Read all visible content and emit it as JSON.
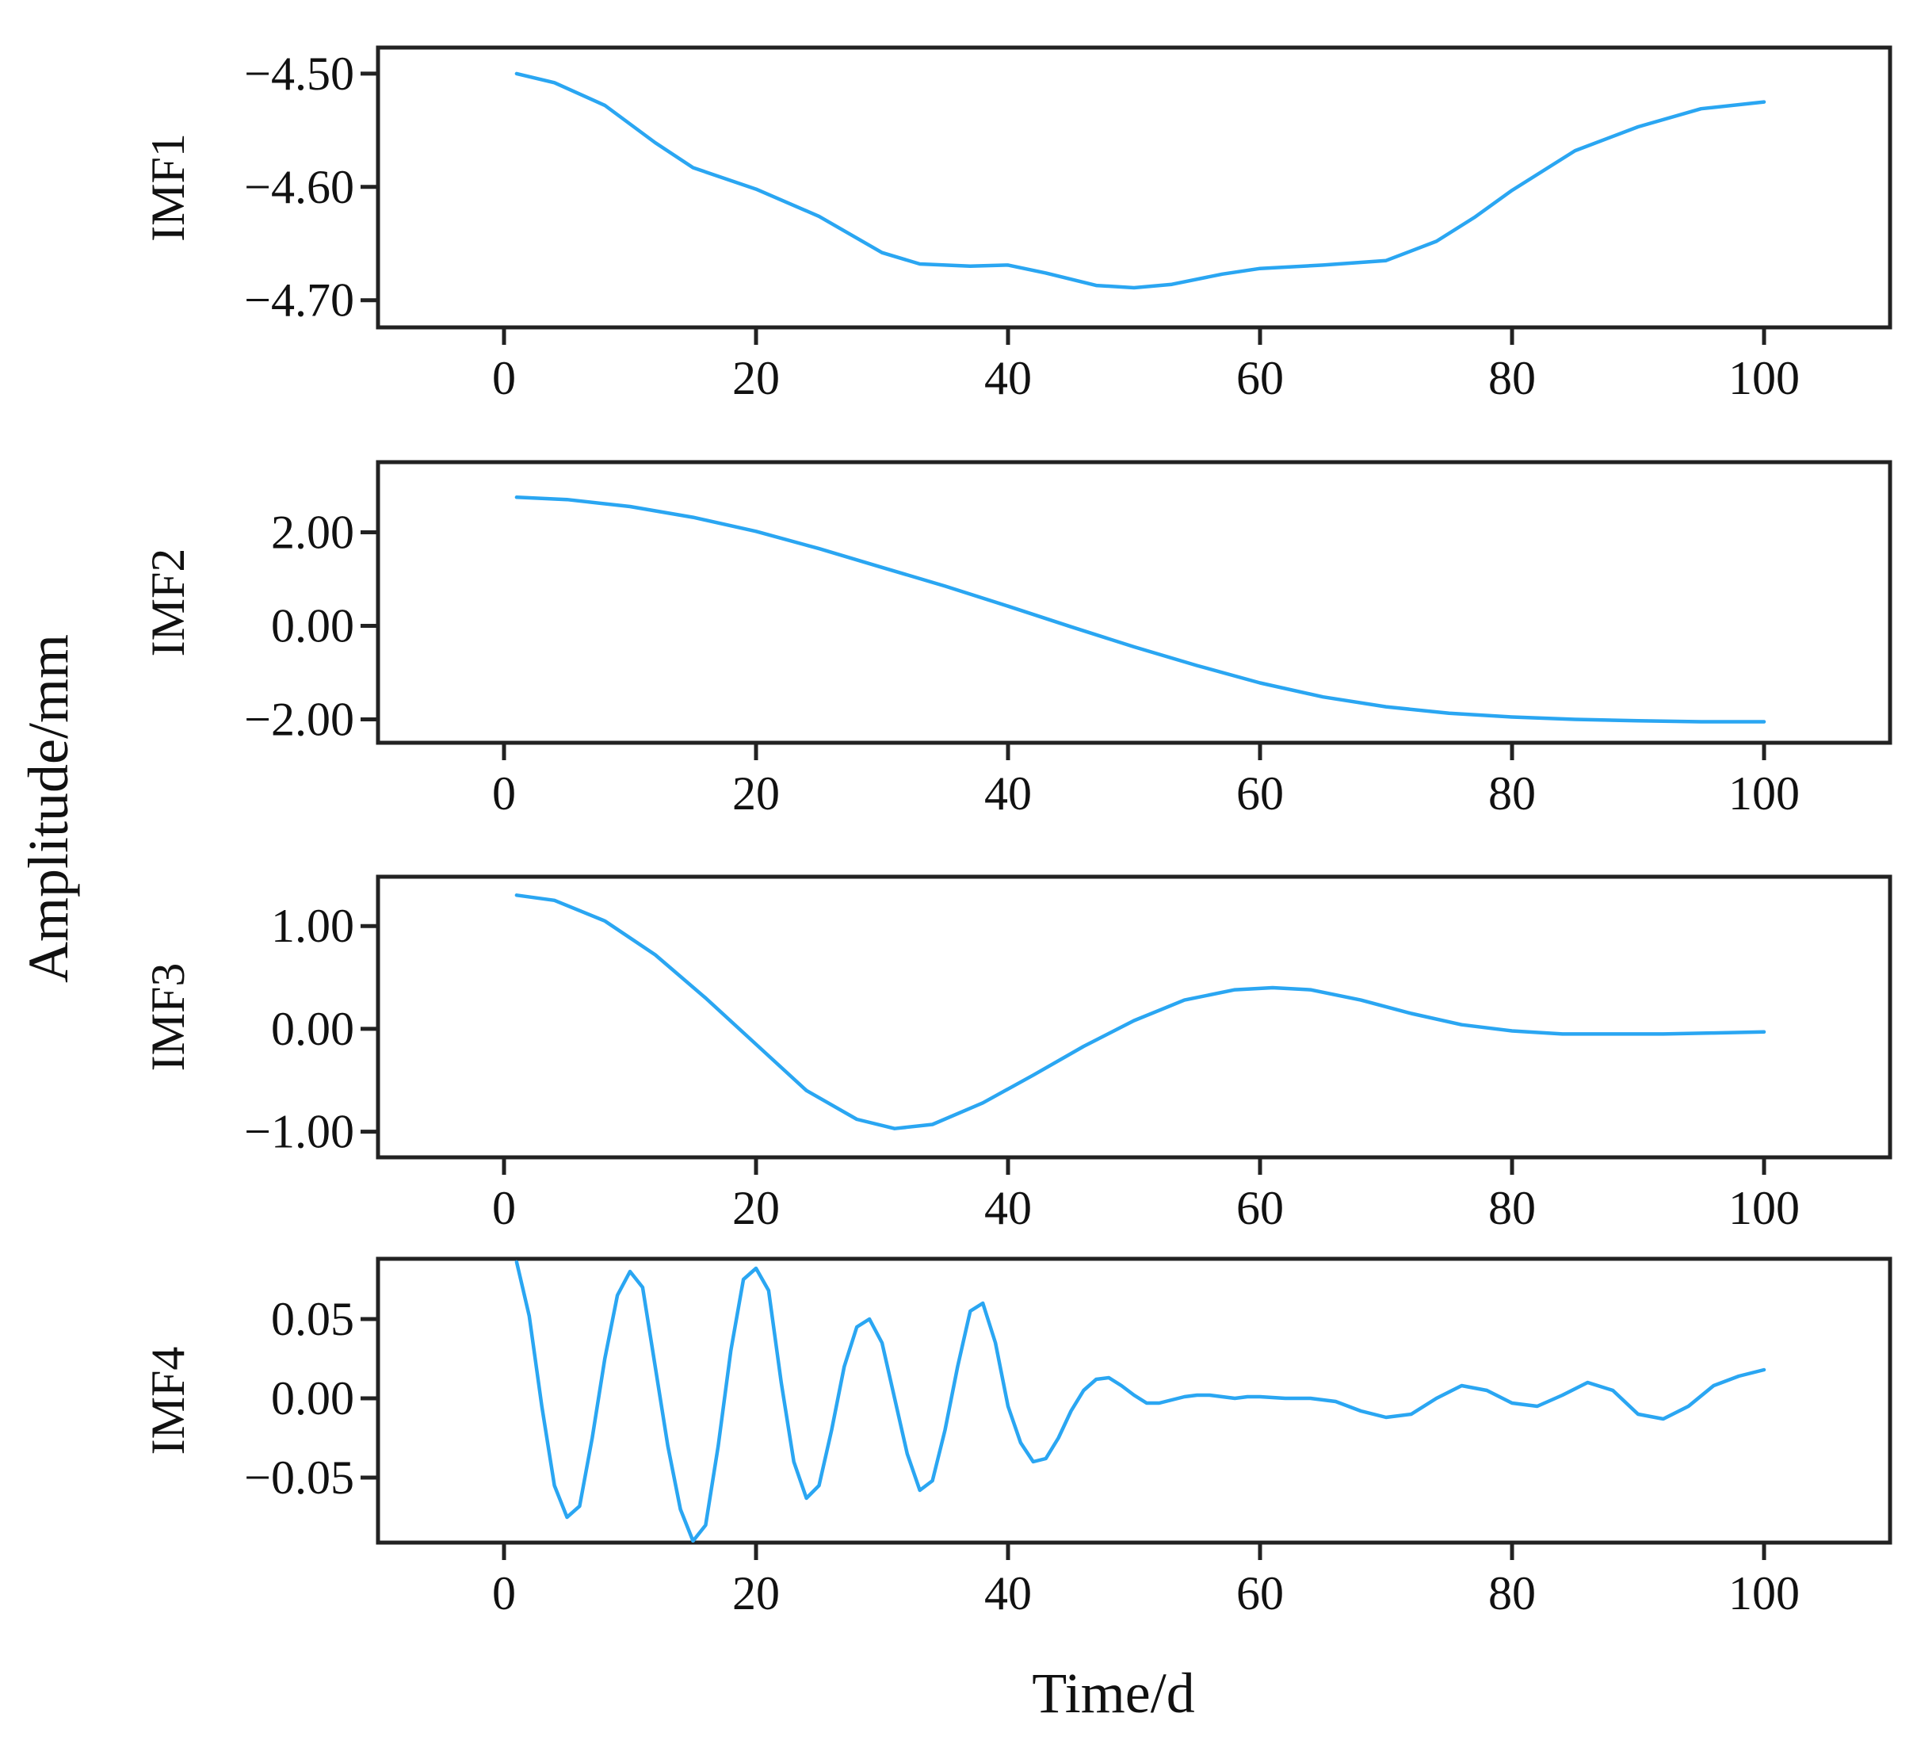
{
  "figure": {
    "ylabel": "Amplitude/mm",
    "xlabel": "Time/d",
    "line_color": "#2aa6f2"
  },
  "chart_data": [
    {
      "type": "line",
      "ylabel": "IMF1",
      "xlabel": "",
      "xlim": [
        -10,
        110
      ],
      "ylim": [
        -4.724,
        -4.477
      ],
      "xticks": [
        0,
        20,
        40,
        60,
        80,
        100
      ],
      "xtick_labels": [
        "0",
        "20",
        "40",
        "60",
        "80",
        "100"
      ],
      "yticks": [
        -4.5,
        -4.6,
        -4.7
      ],
      "ytick_labels": [
        "−4.50",
        "−4.60",
        "−4.70"
      ],
      "series": [
        {
          "name": "IMF1",
          "x": [
            1,
            4,
            8,
            12,
            15,
            20,
            25,
            30,
            33,
            37,
            40,
            43,
            47,
            50,
            53,
            57,
            60,
            65,
            70,
            74,
            77,
            80,
            85,
            90,
            95,
            100
          ],
          "values": [
            -4.5,
            -4.508,
            -4.528,
            -4.561,
            -4.583,
            -4.602,
            -4.626,
            -4.658,
            -4.668,
            -4.67,
            -4.669,
            -4.676,
            -4.687,
            -4.689,
            -4.686,
            -4.677,
            -4.672,
            -4.669,
            -4.665,
            -4.648,
            -4.627,
            -4.603,
            -4.568,
            -4.547,
            -4.531,
            -4.525
          ]
        }
      ]
    },
    {
      "type": "line",
      "ylabel": "IMF2",
      "xlabel": "",
      "xlim": [
        -10,
        110
      ],
      "ylim": [
        -2.5,
        3.5
      ],
      "xticks": [
        0,
        20,
        40,
        60,
        80,
        100
      ],
      "xtick_labels": [
        "0",
        "20",
        "40",
        "60",
        "80",
        "100"
      ],
      "yticks": [
        2.0,
        0.0,
        -2.0
      ],
      "ytick_labels": [
        "2.00",
        "0.00",
        "−2.00"
      ],
      "series": [
        {
          "name": "IMF2",
          "x": [
            1,
            5,
            10,
            15,
            20,
            25,
            30,
            35,
            40,
            45,
            50,
            55,
            60,
            65,
            70,
            75,
            80,
            85,
            90,
            95,
            100
          ],
          "values": [
            2.75,
            2.7,
            2.55,
            2.32,
            2.02,
            1.65,
            1.25,
            0.85,
            0.42,
            -0.02,
            -0.45,
            -0.85,
            -1.22,
            -1.52,
            -1.73,
            -1.87,
            -1.95,
            -2.0,
            -2.03,
            -2.05,
            -2.05
          ]
        }
      ]
    },
    {
      "type": "line",
      "ylabel": "IMF3",
      "xlabel": "",
      "xlim": [
        -10,
        110
      ],
      "ylim": [
        -1.25,
        1.48
      ],
      "xticks": [
        0,
        20,
        40,
        60,
        80,
        100
      ],
      "xtick_labels": [
        "0",
        "20",
        "40",
        "60",
        "80",
        "100"
      ],
      "yticks": [
        1.0,
        0.0,
        -1.0
      ],
      "ytick_labels": [
        "1.00",
        "0.00",
        "−1.00"
      ],
      "series": [
        {
          "name": "IMF3",
          "x": [
            1,
            4,
            8,
            12,
            16,
            20,
            24,
            28,
            31,
            34,
            38,
            42,
            46,
            50,
            54,
            58,
            61,
            64,
            68,
            72,
            76,
            80,
            84,
            88,
            92,
            96,
            100
          ],
          "values": [
            1.3,
            1.25,
            1.05,
            0.72,
            0.3,
            -0.15,
            -0.6,
            -0.88,
            -0.97,
            -0.93,
            -0.72,
            -0.45,
            -0.17,
            0.08,
            0.28,
            0.38,
            0.4,
            0.38,
            0.28,
            0.15,
            0.04,
            -0.02,
            -0.05,
            -0.05,
            -0.05,
            -0.04,
            -0.03
          ]
        }
      ]
    },
    {
      "type": "line",
      "ylabel": "IMF4",
      "xlabel": "Time/d",
      "xlim": [
        -10,
        110
      ],
      "ylim": [
        -0.091,
        0.088
      ],
      "xticks": [
        0,
        20,
        40,
        60,
        80,
        100
      ],
      "xtick_labels": [
        "0",
        "20",
        "40",
        "60",
        "80",
        "100"
      ],
      "yticks": [
        0.05,
        0.0,
        -0.05
      ],
      "ytick_labels": [
        "0.05",
        "0.00",
        "−0.05"
      ],
      "series": [
        {
          "name": "IMF4",
          "x": [
            1,
            2,
            3,
            4,
            5,
            6,
            7,
            8,
            9,
            10,
            11,
            12,
            13,
            14,
            15,
            16,
            17,
            18,
            19,
            20,
            21,
            22,
            23,
            24,
            25,
            26,
            27,
            28,
            29,
            30,
            31,
            32,
            33,
            34,
            35,
            36,
            37,
            38,
            39,
            40,
            41,
            42,
            43,
            44,
            45,
            46,
            47,
            48,
            49,
            50,
            51,
            52,
            53,
            54,
            55,
            56,
            57,
            58,
            59,
            60,
            62,
            64,
            66,
            68,
            70,
            72,
            74,
            76,
            78,
            80,
            82,
            84,
            86,
            88,
            90,
            92,
            94,
            96,
            98,
            100
          ],
          "values": [
            0.086,
            0.052,
            -0.005,
            -0.055,
            -0.075,
            -0.068,
            -0.025,
            0.025,
            0.065,
            0.08,
            0.07,
            0.02,
            -0.03,
            -0.07,
            -0.09,
            -0.08,
            -0.03,
            0.03,
            0.075,
            0.082,
            0.068,
            0.01,
            -0.04,
            -0.063,
            -0.055,
            -0.02,
            0.02,
            0.045,
            0.05,
            0.035,
            0.0,
            -0.035,
            -0.058,
            -0.052,
            -0.02,
            0.02,
            0.055,
            0.06,
            0.035,
            -0.005,
            -0.028,
            -0.04,
            -0.038,
            -0.025,
            -0.008,
            0.005,
            0.012,
            0.013,
            0.008,
            0.002,
            -0.003,
            -0.003,
            -0.001,
            0.001,
            0.002,
            0.002,
            0.001,
            0.0,
            0.001,
            0.001,
            0.0,
            0.0,
            -0.002,
            -0.008,
            -0.012,
            -0.01,
            0.0,
            0.008,
            0.005,
            -0.003,
            -0.005,
            0.002,
            0.01,
            0.005,
            -0.01,
            -0.013,
            -0.005,
            0.008,
            0.014,
            0.018
          ]
        }
      ]
    }
  ]
}
